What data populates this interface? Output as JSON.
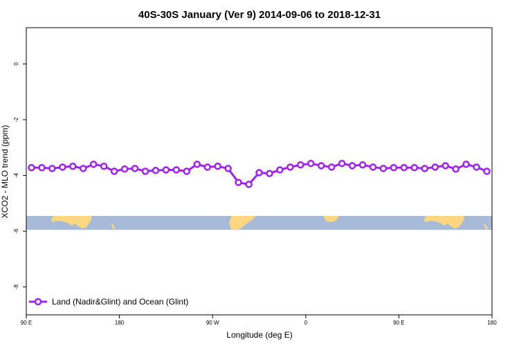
{
  "chart_data": {
    "type": "line",
    "title": "40S-30S January (Ver 9)   2014-09-06 to 2018-12-31",
    "xlabel": "Longitude (deg E)",
    "ylabel": "XCO2 - MLO trend (ppm)",
    "x_ticks": [
      {
        "value": 90,
        "label": "90 E"
      },
      {
        "value": 180,
        "label": "180"
      },
      {
        "value": 270,
        "label": "90 W"
      },
      {
        "value": 360,
        "label": "0"
      },
      {
        "value": 450,
        "label": "90 E"
      },
      {
        "value": 540,
        "label": "180"
      }
    ],
    "y_ticks": [
      0,
      -2,
      -4,
      -6,
      -8
    ],
    "xlim": [
      90,
      540
    ],
    "ylim": [
      -9.0,
      1.3
    ],
    "legend": {
      "label": "Land (Nadir&Glint) and Ocean (Glint)",
      "position": "bottom-left"
    },
    "series": [
      {
        "name": "Land (Nadir&Glint) and Ocean (Glint)",
        "color": "#a020f0",
        "x": [
          95,
          105,
          115,
          125,
          135,
          145,
          155,
          165,
          175,
          185,
          195,
          205,
          215,
          225,
          235,
          245,
          255,
          265,
          275,
          285,
          295,
          305,
          315,
          325,
          335,
          345,
          355,
          365,
          375,
          385,
          395,
          405,
          415,
          425,
          435,
          445,
          455,
          465,
          475,
          485,
          495,
          505,
          515,
          525,
          535
        ],
        "values": [
          -3.72,
          -3.72,
          -3.75,
          -3.7,
          -3.67,
          -3.75,
          -3.6,
          -3.67,
          -3.85,
          -3.77,
          -3.75,
          -3.85,
          -3.82,
          -3.8,
          -3.8,
          -3.85,
          -3.6,
          -3.7,
          -3.67,
          -3.75,
          -4.25,
          -4.32,
          -3.9,
          -3.93,
          -3.8,
          -3.7,
          -3.62,
          -3.57,
          -3.65,
          -3.7,
          -3.57,
          -3.65,
          -3.62,
          -3.7,
          -3.75,
          -3.72,
          -3.72,
          -3.72,
          -3.75,
          -3.7,
          -3.65,
          -3.77,
          -3.6,
          -3.7,
          -3.85
        ]
      }
    ],
    "map_strip": {
      "y_range": [
        -5.45,
        -5.95
      ],
      "ocean_color": "#a7bbd8",
      "land_color": "#fcd77f"
    }
  }
}
